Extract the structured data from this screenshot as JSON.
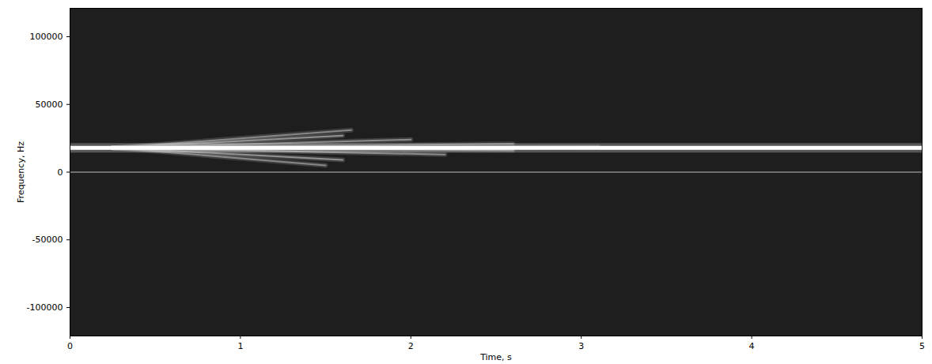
{
  "chart_data": {
    "type": "spectrogram",
    "x_label": "Time, s",
    "y_label": "Frequency, Hz",
    "xlim": [
      0,
      5
    ],
    "xticks": [
      0,
      1,
      2,
      3,
      4,
      5
    ],
    "ylim": [
      -121000,
      121000
    ],
    "yticks": [
      -100000,
      -50000,
      0,
      50000,
      100000
    ],
    "series": [
      {
        "color": "#9a9a9a",
        "x": [
          0.25,
          1.65
        ],
        "values": [
          18000,
          31000
        ]
      },
      {
        "color": "#a8a8a8",
        "x": [
          0.25,
          1.6
        ],
        "values": [
          18000,
          27000
        ]
      },
      {
        "color": "#a0a0a0",
        "x": [
          0.25,
          2.0
        ],
        "values": [
          18000,
          24000
        ]
      },
      {
        "color": "#8c8c8c",
        "x": [
          0.25,
          2.6
        ],
        "values": [
          18000,
          21000
        ]
      },
      {
        "color": "#7a7a7a",
        "x": [
          0.25,
          3.1
        ],
        "values": [
          18000,
          19000
        ]
      },
      {
        "color": "#8c8c8c",
        "x": [
          0.25,
          2.6
        ],
        "values": [
          18000,
          16000
        ]
      },
      {
        "color": "#a0a0a0",
        "x": [
          0.25,
          2.2
        ],
        "values": [
          18000,
          13000
        ]
      },
      {
        "color": "#a8a8a8",
        "x": [
          0.25,
          1.6
        ],
        "values": [
          18000,
          9000
        ]
      },
      {
        "color": "#9a9a9a",
        "x": [
          0.25,
          1.5
        ],
        "values": [
          18000,
          5000
        ]
      },
      {
        "color": "#6e6e6e",
        "x": [
          0,
          5
        ],
        "values": [
          0,
          0
        ]
      },
      {
        "color": "#ffffff",
        "x": [
          0,
          5
        ],
        "values": [
          18000,
          18000
        ]
      }
    ]
  }
}
